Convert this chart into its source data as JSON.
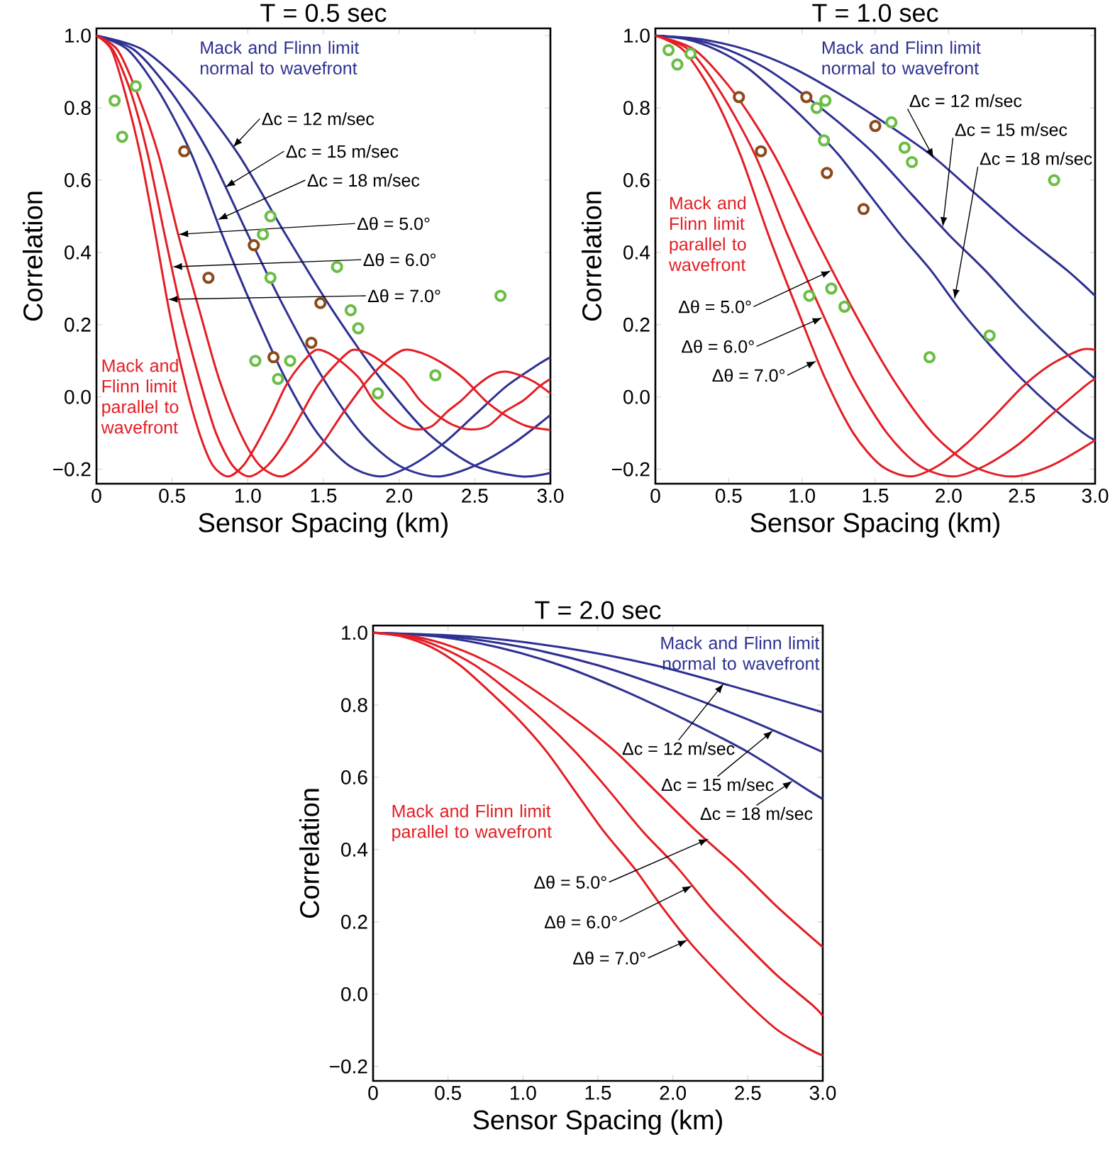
{
  "chart_data": [
    {
      "type": "line",
      "title": "T = 0.5 sec",
      "xlabel": "Sensor Spacing (km)",
      "ylabel": "Correlation",
      "xlim": [
        0,
        3
      ],
      "ylim": [
        -0.24,
        1.02
      ],
      "xticks": [
        0,
        {
          "value": 0.5,
          "label": "0.5"
        },
        {
          "value": 1,
          "label": "1.0"
        },
        {
          "value": 1.5,
          "label": "1.5"
        },
        {
          "value": 2,
          "label": "2.0"
        },
        {
          "value": 2.5,
          "label": "2.5"
        },
        {
          "value": 3,
          "label": "3.0"
        }
      ],
      "yticks": [
        {
          "value": -0.2,
          "label": "−0.2"
        },
        {
          "value": 0,
          "label": "0.0"
        },
        0.2,
        0.4,
        0.6,
        0.8,
        {
          "value": 1,
          "label": "1.0"
        }
      ],
      "series": [
        {
          "color": "#2e3192",
          "x": [
            0,
            0.31,
            0.63,
            0.94,
            1.25,
            1.56,
            1.88,
            2.19,
            2.5,
            2.81,
            3.0
          ],
          "values": [
            1,
            0.96,
            0.84,
            0.67,
            0.45,
            0.24,
            0.05,
            -0.1,
            -0.19,
            -0.22,
            -0.21
          ]
        },
        {
          "color": "#2e3192",
          "x": [
            0,
            0.25,
            0.5,
            0.75,
            1.0,
            1.25,
            1.5,
            1.75,
            2.0,
            2.25,
            2.5,
            2.75,
            3.0
          ],
          "values": [
            1,
            0.96,
            0.84,
            0.67,
            0.45,
            0.24,
            0.05,
            -0.1,
            -0.19,
            -0.22,
            -0.19,
            -0.13,
            -0.05
          ]
        },
        {
          "color": "#2e3192",
          "x": [
            0,
            0.21,
            0.42,
            0.63,
            0.83,
            1.04,
            1.25,
            1.46,
            1.67,
            1.88,
            2.08,
            2.29,
            2.5,
            2.71,
            2.92,
            3.0
          ],
          "values": [
            1,
            0.96,
            0.84,
            0.67,
            0.45,
            0.24,
            0.05,
            -0.1,
            -0.19,
            -0.22,
            -0.19,
            -0.13,
            -0.05,
            0.03,
            0.09,
            0.11
          ]
        },
        {
          "color": "#e31e24",
          "x": [
            0,
            0.14,
            0.27,
            0.41,
            0.54,
            0.68,
            0.81,
            0.95,
            1.08,
            1.22,
            1.35,
            1.49,
            1.62,
            1.76,
            1.89,
            2.03,
            2.16,
            2.3,
            2.43,
            2.57,
            2.7,
            2.84,
            2.97,
            3.0
          ],
          "values": [
            1,
            0.96,
            0.84,
            0.67,
            0.45,
            0.24,
            0.05,
            -0.1,
            -0.19,
            -0.22,
            -0.19,
            -0.13,
            -0.05,
            0.03,
            0.09,
            0.13,
            0.12,
            0.09,
            0.05,
            -0.01,
            -0.05,
            -0.08,
            -0.09,
            -0.09
          ]
        },
        {
          "color": "#e31e24",
          "x": [
            0,
            0.11,
            0.23,
            0.34,
            0.45,
            0.56,
            0.68,
            0.79,
            0.9,
            1.01,
            1.13,
            1.24,
            1.35,
            1.46,
            1.58,
            1.69,
            1.8,
            1.91,
            2.03,
            2.14,
            2.25,
            2.37,
            2.48,
            2.59,
            2.7,
            2.82,
            2.93,
            3.0
          ],
          "values": [
            1,
            0.96,
            0.84,
            0.67,
            0.45,
            0.24,
            0.05,
            -0.1,
            -0.19,
            -0.22,
            -0.19,
            -0.13,
            -0.05,
            0.03,
            0.09,
            0.13,
            0.12,
            0.09,
            0.05,
            -0.01,
            -0.05,
            -0.08,
            -0.09,
            -0.08,
            -0.04,
            -0.01,
            0.03,
            0.05
          ]
        },
        {
          "color": "#e31e24",
          "x": [
            0,
            0.1,
            0.19,
            0.29,
            0.39,
            0.48,
            0.58,
            0.68,
            0.77,
            0.87,
            0.97,
            1.06,
            1.16,
            1.25,
            1.35,
            1.45,
            1.54,
            1.64,
            1.74,
            1.83,
            1.93,
            2.03,
            2.12,
            2.22,
            2.32,
            2.41,
            2.51,
            2.61,
            2.7,
            2.8,
            2.9,
            3.0
          ],
          "values": [
            1,
            0.96,
            0.84,
            0.67,
            0.45,
            0.24,
            0.05,
            -0.1,
            -0.19,
            -0.22,
            -0.19,
            -0.13,
            -0.05,
            0.03,
            0.09,
            0.13,
            0.12,
            0.09,
            0.05,
            -0.01,
            -0.05,
            -0.08,
            -0.09,
            -0.08,
            -0.04,
            -0.01,
            0.03,
            0.06,
            0.07,
            0.06,
            0.04,
            0.01
          ]
        },
        {
          "type": "scatter",
          "marker": "circle",
          "color": "#6abd45",
          "x": [
            0.12,
            0.26,
            0.17,
            1.15,
            1.1,
            1.15,
            1.59,
            2.67,
            1.68,
            1.73,
            1.05,
            1.28,
            1.2,
            2.24,
            1.86
          ],
          "values": [
            0.82,
            0.86,
            0.72,
            0.5,
            0.45,
            0.33,
            0.36,
            0.28,
            0.24,
            0.19,
            0.1,
            0.1,
            0.05,
            0.06,
            0.01
          ]
        },
        {
          "type": "scatter",
          "marker": "circle",
          "color": "#8b4a1c",
          "x": [
            0.58,
            1.04,
            0.74,
            1.48,
            1.42,
            1.17
          ],
          "values": [
            0.68,
            0.42,
            0.33,
            0.26,
            0.15,
            0.11
          ]
        }
      ],
      "annotations": [
        "Mack and Flinn limit normal to wavefront",
        "Mack and Flinn limit parallel to wavefront",
        {
          "text": "Δc = 12 m/sec",
          "x": 0.9,
          "y": 0.69
        },
        {
          "text": "Δc = 15 m/sec",
          "x": 0.85,
          "y": 0.58
        },
        {
          "text": "Δc = 18 m/sec",
          "x": 0.8,
          "y": 0.49
        },
        {
          "text": "Δθ = 5.0°",
          "x": 0.54,
          "y": 0.45
        },
        {
          "text": "Δθ = 6.0°",
          "x": 0.5,
          "y": 0.36
        },
        {
          "text": "Δθ = 7.0°",
          "x": 0.47,
          "y": 0.27
        }
      ]
    },
    {
      "type": "line",
      "title": "T = 1.0 sec",
      "xlabel": "Sensor Spacing (km)",
      "ylabel": "Correlation",
      "xlim": [
        0,
        3
      ],
      "ylim": [
        -0.24,
        1.02
      ],
      "xticks": [
        0,
        {
          "value": 0.5,
          "label": "0.5"
        },
        {
          "value": 1,
          "label": "1.0"
        },
        {
          "value": 1.5,
          "label": "1.5"
        },
        {
          "value": 2,
          "label": "2.0"
        },
        {
          "value": 2.5,
          "label": "2.5"
        },
        {
          "value": 3,
          "label": "3.0"
        }
      ],
      "yticks": [
        {
          "value": -0.2,
          "label": "−0.2"
        },
        {
          "value": 0,
          "label": "0.0"
        },
        0.2,
        0.4,
        0.6,
        0.8,
        {
          "value": 1,
          "label": "1.0"
        }
      ],
      "series": [
        {
          "color": "#2e3192",
          "x": [
            0,
            0.31,
            0.63,
            0.94,
            1.25,
            1.56,
            1.88,
            2.19,
            2.5,
            2.81,
            3.0
          ],
          "values": [
            1,
            0.99,
            0.96,
            0.91,
            0.84,
            0.76,
            0.67,
            0.56,
            0.45,
            0.35,
            0.28
          ]
        },
        {
          "color": "#2e3192",
          "x": [
            0,
            0.25,
            0.5,
            0.75,
            1.0,
            1.25,
            1.5,
            1.75,
            2.0,
            2.25,
            2.5,
            2.75,
            3.0
          ],
          "values": [
            1,
            0.99,
            0.96,
            0.91,
            0.84,
            0.76,
            0.67,
            0.56,
            0.45,
            0.35,
            0.24,
            0.14,
            0.05
          ]
        },
        {
          "color": "#2e3192",
          "x": [
            0,
            0.21,
            0.42,
            0.63,
            0.83,
            1.04,
            1.25,
            1.46,
            1.67,
            1.88,
            2.08,
            2.29,
            2.5,
            2.71,
            2.92,
            3.0
          ],
          "values": [
            1,
            0.99,
            0.96,
            0.91,
            0.84,
            0.76,
            0.67,
            0.56,
            0.45,
            0.35,
            0.24,
            0.14,
            0.05,
            -0.03,
            -0.1,
            -0.12
          ]
        },
        {
          "color": "#e31e24",
          "x": [
            0,
            0.27,
            0.54,
            0.81,
            1.08,
            1.35,
            1.62,
            1.89,
            2.16,
            2.43,
            2.7,
            3.0
          ],
          "values": [
            1,
            0.96,
            0.84,
            0.67,
            0.45,
            0.24,
            0.05,
            -0.1,
            -0.19,
            -0.22,
            -0.19,
            -0.12
          ]
        },
        {
          "color": "#e31e24",
          "x": [
            0,
            0.23,
            0.45,
            0.68,
            0.9,
            1.13,
            1.35,
            1.58,
            1.8,
            2.03,
            2.25,
            2.48,
            2.7,
            2.93,
            3.0
          ],
          "values": [
            1,
            0.96,
            0.84,
            0.67,
            0.45,
            0.24,
            0.05,
            -0.1,
            -0.19,
            -0.22,
            -0.19,
            -0.13,
            -0.05,
            0.03,
            0.05
          ]
        },
        {
          "color": "#e31e24",
          "x": [
            0,
            0.19,
            0.39,
            0.58,
            0.77,
            0.97,
            1.16,
            1.35,
            1.54,
            1.74,
            1.93,
            2.12,
            2.32,
            2.51,
            2.7,
            2.9,
            3.0
          ],
          "values": [
            1,
            0.96,
            0.84,
            0.67,
            0.45,
            0.24,
            0.05,
            -0.1,
            -0.19,
            -0.22,
            -0.19,
            -0.13,
            -0.05,
            0.03,
            0.09,
            0.13,
            0.13
          ]
        },
        {
          "type": "scatter",
          "marker": "circle",
          "color": "#6abd45",
          "x": [
            0.09,
            0.15,
            0.24,
            1.1,
            1.16,
            1.15,
            1.61,
            1.7,
            1.75,
            2.72,
            1.05,
            1.2,
            1.29,
            2.28,
            1.87
          ],
          "values": [
            0.96,
            0.92,
            0.95,
            0.8,
            0.82,
            0.71,
            0.76,
            0.69,
            0.65,
            0.6,
            0.28,
            0.3,
            0.25,
            0.17,
            0.11
          ]
        },
        {
          "type": "scatter",
          "marker": "circle",
          "color": "#8b4a1c",
          "x": [
            0.57,
            1.03,
            1.5,
            0.72,
            1.17,
            1.42
          ],
          "values": [
            0.83,
            0.83,
            0.75,
            0.68,
            0.62,
            0.52
          ]
        }
      ],
      "annotations": [
        "Mack and Flinn limit normal to wavefront",
        "Mack and Flinn limit parallel to wavefront",
        {
          "text": "Δc = 12 m/sec",
          "x": 1.9,
          "y": 0.66
        },
        {
          "text": "Δc = 15 m/sec",
          "x": 1.96,
          "y": 0.47
        },
        {
          "text": "Δc = 18 m/sec",
          "x": 2.04,
          "y": 0.27
        },
        {
          "text": "Δθ = 5.0°",
          "x": 1.2,
          "y": 0.35
        },
        {
          "text": "Δθ = 6.0°",
          "x": 1.14,
          "y": 0.22
        },
        {
          "text": "Δθ = 7.0°",
          "x": 1.1,
          "y": 0.1
        }
      ]
    },
    {
      "type": "line",
      "title": "T = 2.0 sec",
      "xlabel": "Sensor Spacing (km)",
      "ylabel": "Correlation",
      "xlim": [
        0,
        3
      ],
      "ylim": [
        -0.24,
        1.02
      ],
      "xticks": [
        0,
        {
          "value": 0.5,
          "label": "0.5"
        },
        {
          "value": 1,
          "label": "1.0"
        },
        {
          "value": 1.5,
          "label": "1.5"
        },
        {
          "value": 2,
          "label": "2.0"
        },
        {
          "value": 2.5,
          "label": "2.5"
        },
        {
          "value": 3,
          "label": "3.0"
        }
      ],
      "yticks": [
        {
          "value": -0.2,
          "label": "−0.2"
        },
        {
          "value": 0,
          "label": "0.0"
        },
        0.2,
        0.4,
        0.6,
        0.8,
        {
          "value": 1,
          "label": "1.0"
        }
      ],
      "series": [
        {
          "color": "#2e3192",
          "x": [
            0,
            0.63,
            1.25,
            1.88,
            2.5,
            3.0
          ],
          "values": [
            1,
            0.99,
            0.96,
            0.91,
            0.84,
            0.78
          ]
        },
        {
          "color": "#2e3192",
          "x": [
            0,
            0.5,
            1.0,
            1.5,
            2.0,
            2.5,
            3.0
          ],
          "values": [
            1,
            0.99,
            0.96,
            0.91,
            0.84,
            0.76,
            0.67
          ]
        },
        {
          "color": "#2e3192",
          "x": [
            0,
            0.42,
            0.83,
            1.25,
            1.67,
            2.08,
            2.5,
            2.92,
            3.0
          ],
          "values": [
            1,
            0.99,
            0.96,
            0.91,
            0.84,
            0.76,
            0.67,
            0.56,
            0.54
          ]
        },
        {
          "color": "#e31e24",
          "x": [
            0,
            0.27,
            0.54,
            0.81,
            1.08,
            1.35,
            1.62,
            1.89,
            2.16,
            2.43,
            2.7,
            3.0
          ],
          "values": [
            1,
            0.99,
            0.96,
            0.91,
            0.84,
            0.76,
            0.67,
            0.56,
            0.45,
            0.35,
            0.24,
            0.13
          ]
        },
        {
          "color": "#e31e24",
          "x": [
            0,
            0.23,
            0.45,
            0.68,
            0.9,
            1.13,
            1.35,
            1.58,
            1.8,
            2.03,
            2.25,
            2.48,
            2.7,
            2.93,
            3.0
          ],
          "values": [
            1,
            0.99,
            0.96,
            0.91,
            0.84,
            0.76,
            0.67,
            0.56,
            0.45,
            0.35,
            0.24,
            0.14,
            0.05,
            -0.03,
            -0.06
          ]
        },
        {
          "color": "#e31e24",
          "x": [
            0,
            0.19,
            0.39,
            0.58,
            0.77,
            0.97,
            1.16,
            1.35,
            1.54,
            1.74,
            1.93,
            2.12,
            2.32,
            2.51,
            2.7,
            2.9,
            3.0
          ],
          "values": [
            1,
            0.99,
            0.96,
            0.91,
            0.84,
            0.76,
            0.67,
            0.56,
            0.45,
            0.35,
            0.24,
            0.14,
            0.05,
            -0.03,
            -0.1,
            -0.15,
            -0.17
          ]
        }
      ],
      "annotations": [
        "Mack and Flinn limit normal to wavefront",
        "Mack and Flinn limit parallel to wavefront",
        {
          "text": "Δc = 12 m/sec",
          "x": 2.34,
          "y": 0.86
        },
        {
          "text": "Δc = 15 m/sec",
          "x": 2.67,
          "y": 0.73
        },
        {
          "text": "Δc = 18 m/sec",
          "x": 2.8,
          "y": 0.59
        },
        {
          "text": "Δθ = 5.0°",
          "x": 2.24,
          "y": 0.43
        },
        {
          "text": "Δθ = 6.0°",
          "x": 2.13,
          "y": 0.3
        },
        {
          "text": "Δθ = 7.0°",
          "x": 2.1,
          "y": 0.15
        }
      ]
    }
  ]
}
